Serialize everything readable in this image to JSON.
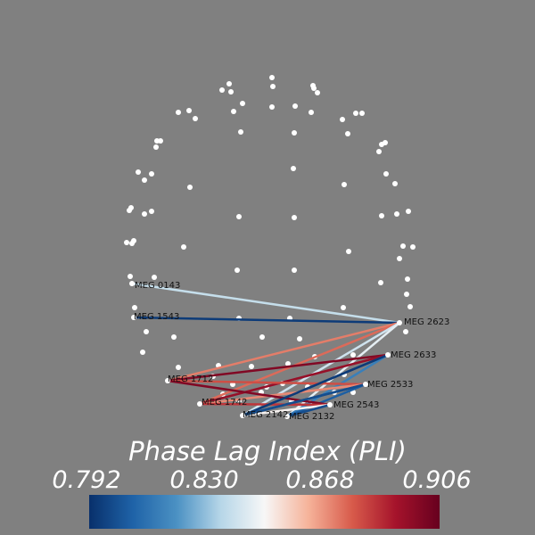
{
  "colorbar": {
    "title": "Phase Lag Index (PLI)",
    "ticks": [
      "0.792",
      "0.830",
      "0.868",
      "0.906"
    ],
    "min": 0.792,
    "max": 0.906,
    "colors": [
      "#08306b",
      "#1f63a8",
      "#4b91c3",
      "#b6d6e8",
      "#f7f7f7",
      "#f6b39a",
      "#d85b4b",
      "#a5132b",
      "#67001f"
    ]
  },
  "labels": {
    "meg0143": "MEG 0143",
    "meg1543": "MEG 1543",
    "meg2623": "MEG 2623",
    "meg2633": "MEG 2633",
    "meg2533": "MEG 2533",
    "meg2543": "MEG 2543",
    "meg1712": "MEG 1712",
    "meg1742": "MEG 1742",
    "meg2142": "MEG 2142",
    "meg2132": "MEG 2132"
  },
  "connections": [
    {
      "from": "meg0143",
      "to": "meg2623",
      "value": 0.838
    },
    {
      "from": "meg1543",
      "to": "meg2623",
      "value": 0.795
    },
    {
      "from": "meg1712",
      "to": "meg2623",
      "value": 0.872
    },
    {
      "from": "meg1742",
      "to": "meg2623",
      "value": 0.875
    },
    {
      "from": "meg2142",
      "to": "meg2623",
      "value": 0.84
    },
    {
      "from": "meg2132",
      "to": "meg2623",
      "value": 0.845
    },
    {
      "from": "meg1712",
      "to": "meg2633",
      "value": 0.9
    },
    {
      "from": "meg1742",
      "to": "meg2633",
      "value": 0.895
    },
    {
      "from": "meg2142",
      "to": "meg2633",
      "value": 0.8
    },
    {
      "from": "meg2132",
      "to": "meg2633",
      "value": 0.815
    },
    {
      "from": "meg1712",
      "to": "meg2533",
      "value": 0.88
    },
    {
      "from": "meg1742",
      "to": "meg2533",
      "value": 0.87
    },
    {
      "from": "meg2142",
      "to": "meg2533",
      "value": 0.797
    },
    {
      "from": "meg2132",
      "to": "meg2533",
      "value": 0.805
    },
    {
      "from": "meg1712",
      "to": "meg2543",
      "value": 0.9
    },
    {
      "from": "meg1742",
      "to": "meg2543",
      "value": 0.885
    },
    {
      "from": "meg2142",
      "to": "meg2543",
      "value": 0.85
    },
    {
      "from": "meg2132",
      "to": "meg2543",
      "value": 0.8
    },
    {
      "from": "meg2633",
      "to": "meg2142",
      "value": 0.795
    },
    {
      "from": "meg2533",
      "to": "meg2142",
      "value": 0.8
    }
  ]
}
